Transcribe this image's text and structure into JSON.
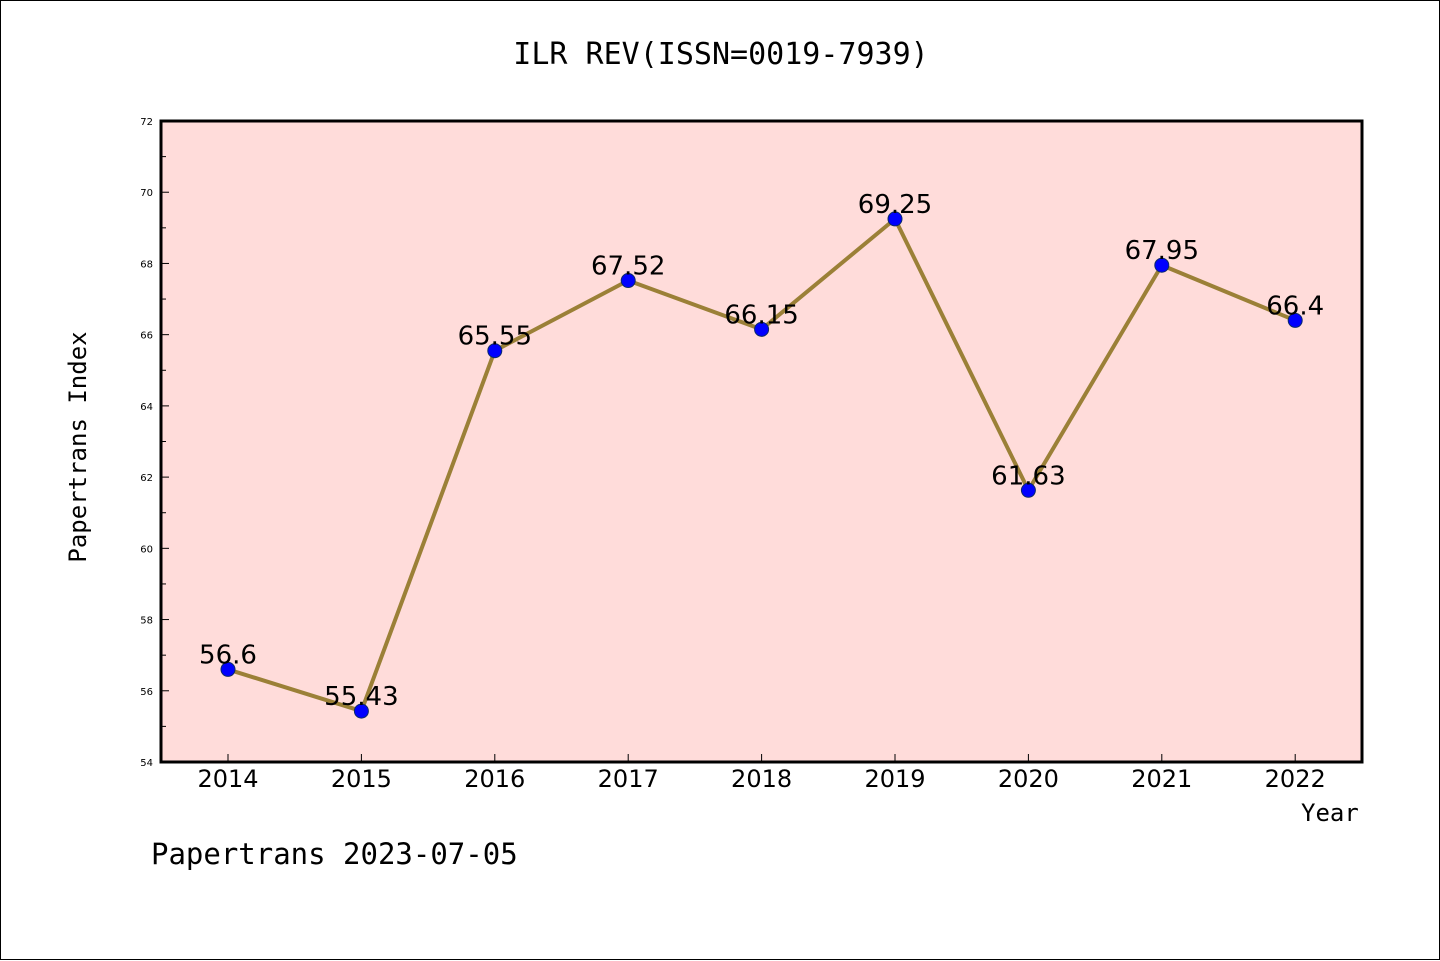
{
  "title": "ILR REV(ISSN=0019-7939)",
  "footer": "Papertrans 2023-07-05",
  "colors": {
    "plot_background": "#ffdcda",
    "line": "#9b8037",
    "marker": "#0000ff",
    "marker_edge": "#0b2a6b"
  },
  "chart_data": {
    "type": "line",
    "title": "ILR REV(ISSN=0019-7939)",
    "xlabel": "Year",
    "ylabel": "Papertrans Index",
    "categories": [
      "2014",
      "2015",
      "2016",
      "2017",
      "2018",
      "2019",
      "2020",
      "2021",
      "2022"
    ],
    "values": [
      56.6,
      55.43,
      65.55,
      67.52,
      66.15,
      69.25,
      61.63,
      67.95,
      66.4
    ],
    "data_labels": [
      "56.6",
      "55.43",
      "65.55",
      "67.52",
      "66.15",
      "69.25",
      "61.63",
      "67.95",
      "66.4"
    ],
    "ylim": [
      54,
      72
    ],
    "yticks": [
      "54",
      "56",
      "58",
      "60",
      "62",
      "64",
      "66",
      "68",
      "70",
      "72"
    ],
    "grid": false,
    "legend": "none"
  }
}
